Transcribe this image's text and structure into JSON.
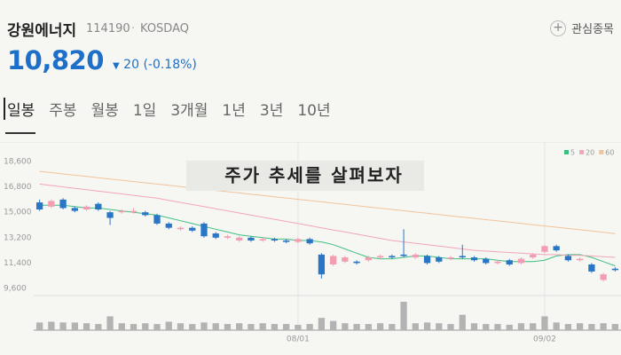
{
  "header": {
    "name": "강원에너지",
    "code": "114190",
    "market": "KOSDAQ",
    "watch": "관심종목"
  },
  "price": {
    "value": "10,820",
    "change": "20",
    "change_pct": "(-0.18%)"
  },
  "tabs": [
    "일봉",
    "주봉",
    "월봉",
    "1일",
    "3개월",
    "1년",
    "3년",
    "10년"
  ],
  "chart_data": {
    "type": "candlestick",
    "annotation": "주가 추세를 살펴보자",
    "categories": [
      null,
      null,
      null,
      null,
      null,
      null,
      null,
      null,
      null,
      null,
      null,
      null,
      null,
      null,
      null,
      null,
      null,
      null,
      null,
      null,
      null,
      null,
      "08/01",
      null,
      null,
      null,
      null,
      null,
      null,
      null,
      null,
      null,
      null,
      null,
      null,
      null,
      null,
      null,
      null,
      null,
      null,
      null,
      null,
      "09/02",
      null,
      null,
      null,
      null,
      null,
      null
    ],
    "open": [
      15700,
      15400,
      15900,
      15300,
      15200,
      15600,
      15000,
      15000,
      15000,
      15000,
      14800,
      14200,
      13800,
      13900,
      14200,
      13500,
      13200,
      13000,
      13200,
      13000,
      13100,
      13000,
      12900,
      13100,
      12000,
      11300,
      11500,
      11500,
      11600,
      11800,
      11900,
      12000,
      11800,
      11900,
      11800,
      11700,
      11900,
      11800,
      11700,
      11400,
      11600,
      11400,
      11800,
      12200,
      12600,
      11900,
      11600,
      11300,
      10200,
      11000
    ],
    "high": [
      15900,
      15900,
      16000,
      15400,
      15500,
      15700,
      15100,
      15200,
      15300,
      15100,
      14900,
      14300,
      14000,
      14000,
      14300,
      13600,
      13400,
      13300,
      13300,
      13200,
      13200,
      13100,
      13200,
      13200,
      12100,
      12000,
      11900,
      11600,
      11900,
      12000,
      12000,
      13800,
      12100,
      12000,
      11900,
      11900,
      12700,
      11900,
      11800,
      11600,
      11700,
      11800,
      12100,
      12700,
      12700,
      12000,
      11800,
      11400,
      10700,
      11100
    ],
    "low": [
      15100,
      15300,
      15200,
      15000,
      15100,
      15100,
      14100,
      14900,
      14900,
      14700,
      14100,
      13800,
      13700,
      13600,
      13200,
      13100,
      13100,
      12900,
      12900,
      12900,
      12900,
      12800,
      12800,
      12700,
      10300,
      11200,
      11400,
      11300,
      11500,
      11700,
      11700,
      11800,
      11700,
      11300,
      11400,
      11600,
      11700,
      11500,
      11300,
      11300,
      11200,
      11300,
      11700,
      12100,
      12200,
      11500,
      11500,
      10700,
      10100,
      10800
    ],
    "close": [
      15200,
      15800,
      15300,
      15100,
      15400,
      15200,
      14600,
      15100,
      15100,
      14800,
      14200,
      13900,
      13900,
      13700,
      13300,
      13200,
      13300,
      13200,
      13000,
      13100,
      13000,
      12900,
      13100,
      12800,
      10600,
      11900,
      11800,
      11400,
      11800,
      11900,
      11800,
      11900,
      12000,
      11400,
      11500,
      11800,
      11800,
      11600,
      11400,
      11500,
      11300,
      11700,
      12000,
      12600,
      12300,
      11600,
      11700,
      10800,
      10600,
      10900
    ],
    "volume": [
      10,
      11,
      10,
      10,
      9,
      8,
      18,
      9,
      8,
      9,
      8,
      11,
      9,
      8,
      10,
      9,
      8,
      9,
      8,
      9,
      8,
      8,
      7,
      8,
      16,
      12,
      9,
      8,
      8,
      9,
      8,
      37,
      9,
      10,
      9,
      8,
      20,
      9,
      8,
      8,
      7,
      9,
      9,
      18,
      10,
      8,
      9,
      8,
      9,
      8
    ],
    "up_color": "#f29db1",
    "down_color": "#2a76c6",
    "volume_color": "#b3b3b3",
    "ma": [
      {
        "name": "5",
        "color": "#3fbf7f",
        "values": [
          15500,
          15500,
          15500,
          15400,
          15300,
          15300,
          15200,
          15100,
          15000,
          14900,
          14800,
          14600,
          14400,
          14200,
          14000,
          13800,
          13600,
          13400,
          13300,
          13200,
          13100,
          13100,
          13000,
          13000,
          12900,
          12700,
          12400,
          12100,
          11800,
          11700,
          11700,
          11800,
          11900,
          11900,
          11800,
          11700,
          11700,
          11700,
          11700,
          11600,
          11500,
          11500,
          11500,
          11600,
          11900,
          12000,
          12000,
          11800,
          11500,
          11200
        ]
      },
      {
        "name": "20",
        "color": "#f3a6b8",
        "values": [
          17000,
          16900,
          16800,
          16700,
          16600,
          16500,
          16400,
          16300,
          16200,
          16100,
          16000,
          15850,
          15700,
          15550,
          15400,
          15250,
          15100,
          14950,
          14800,
          14650,
          14500,
          14350,
          14200,
          14050,
          13900,
          13750,
          13600,
          13450,
          13300,
          13150,
          13000,
          12900,
          12800,
          12700,
          12600,
          12500,
          12400,
          12300,
          12250,
          12200,
          12150,
          12100,
          12050,
          12000,
          12000,
          11950,
          11950,
          11900,
          11850,
          11800
        ]
      },
      {
        "name": "60",
        "color": "#f2c39a",
        "values": [
          17900,
          17810,
          17720,
          17630,
          17540,
          17450,
          17360,
          17270,
          17180,
          17090,
          17000,
          16910,
          16820,
          16730,
          16640,
          16550,
          16460,
          16370,
          16280,
          16190,
          16100,
          16010,
          15920,
          15830,
          15740,
          15650,
          15560,
          15470,
          15380,
          15290,
          15200,
          15110,
          15020,
          14930,
          14840,
          14750,
          14660,
          14570,
          14480,
          14390,
          14300,
          14210,
          14120,
          14030,
          13940,
          13850,
          13760,
          13670,
          13580,
          13490
        ]
      }
    ],
    "ylim": [
      9285,
      19040
    ],
    "yticks": [
      {
        "value": 9600,
        "label": "9,600"
      },
      {
        "value": 11400,
        "label": "11,400"
      },
      {
        "value": 13200,
        "label": "13,200"
      },
      {
        "value": 15000,
        "label": "15,000"
      },
      {
        "value": 16800,
        "label": "16,800"
      },
      {
        "value": 18600,
        "label": "18,600"
      }
    ]
  }
}
